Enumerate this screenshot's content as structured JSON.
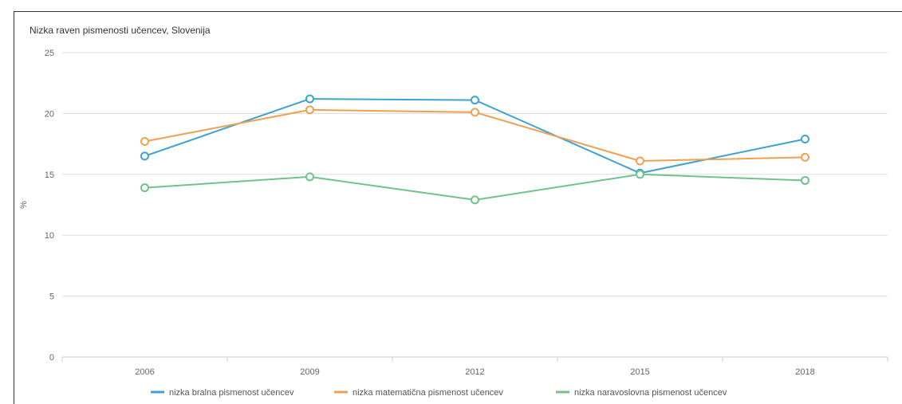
{
  "chart_data": {
    "type": "line",
    "title": "Nizka raven pismenosti učencev, Slovenija",
    "xlabel": "",
    "ylabel": "%",
    "categories": [
      "2006",
      "2009",
      "2012",
      "2015",
      "2018"
    ],
    "ylim": [
      0,
      25
    ],
    "yticks": [
      "0",
      "5",
      "10",
      "15",
      "20",
      "25"
    ],
    "grid": true,
    "legend_position": "bottom",
    "series": [
      {
        "name": "nizka bralna pismenost učencev",
        "color": "#3fa2d0",
        "values": [
          16.5,
          21.2,
          21.1,
          15.1,
          17.9
        ]
      },
      {
        "name": "nizka matematična pismenost učencev",
        "color": "#f0a052",
        "values": [
          17.7,
          20.3,
          20.1,
          16.1,
          16.4
        ]
      },
      {
        "name": "nizka naravoslovna pismenost učencev",
        "color": "#6fc38a",
        "values": [
          13.9,
          14.8,
          12.9,
          15.0,
          14.5
        ]
      }
    ]
  }
}
